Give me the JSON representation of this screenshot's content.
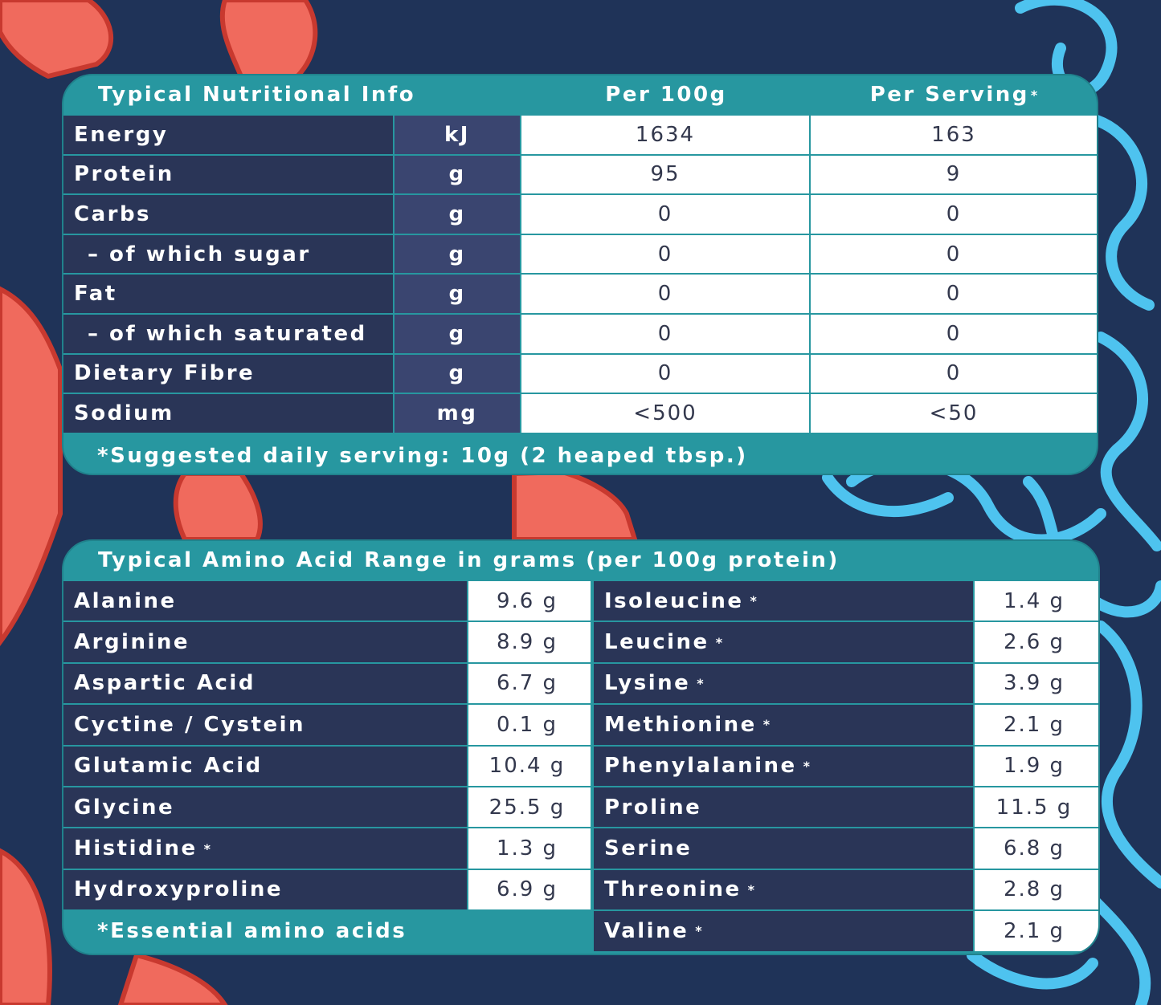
{
  "colors": {
    "background": "#1f3358",
    "panel": "#2797a0",
    "label_cell": "#2a3557",
    "unit_cell": "#3a4570",
    "value_cell": "#ffffff",
    "coral": "#f06a5d",
    "coral_line": "#c8392f",
    "rope": "#4ec3ef"
  },
  "nutrition": {
    "headers": {
      "title": "Typical Nutritional Info",
      "per100": "Per 100g",
      "perServing": "Per Serving*"
    },
    "rows": [
      {
        "label": "Energy",
        "unit": "kJ",
        "per100": "1634",
        "perServing": "163"
      },
      {
        "label": "Protein",
        "unit": "g",
        "per100": "95",
        "perServing": "9"
      },
      {
        "label": "Carbs",
        "unit": "g",
        "per100": "0",
        "perServing": "0"
      },
      {
        "label": "– of which sugar",
        "unit": "g",
        "per100": "0",
        "perServing": "0"
      },
      {
        "label": "Fat",
        "unit": "g",
        "per100": "0",
        "perServing": "0"
      },
      {
        "label": "– of which saturated",
        "unit": "g",
        "per100": "0",
        "perServing": "0"
      },
      {
        "label": "Dietary Fibre",
        "unit": "g",
        "per100": "0",
        "perServing": "0"
      },
      {
        "label": "Sodium",
        "unit": "mg",
        "per100": "<500",
        "perServing": "<50"
      }
    ],
    "footnote": "*Suggested daily serving: 10g (2 heaped tbsp.)"
  },
  "amino": {
    "title": "Typical Amino Acid Range in grams (per 100g protein)",
    "left": [
      {
        "name": "Alanine",
        "value": "9.6 g",
        "essential": false
      },
      {
        "name": "Arginine",
        "value": "8.9 g",
        "essential": false
      },
      {
        "name": "Aspartic Acid",
        "value": "6.7 g",
        "essential": false
      },
      {
        "name": "Cyctine / Cystein",
        "value": "0.1 g",
        "essential": false
      },
      {
        "name": "Glutamic Acid",
        "value": "10.4 g",
        "essential": false
      },
      {
        "name": "Glycine",
        "value": "25.5 g",
        "essential": false
      },
      {
        "name": "Histidine",
        "value": "1.3 g",
        "essential": true
      },
      {
        "name": "Hydroxyproline",
        "value": "6.9 g",
        "essential": false
      }
    ],
    "right": [
      {
        "name": "Isoleucine",
        "value": "1.4 g",
        "essential": true
      },
      {
        "name": "Leucine",
        "value": "2.6 g",
        "essential": true
      },
      {
        "name": "Lysine",
        "value": "3.9 g",
        "essential": true
      },
      {
        "name": "Methionine",
        "value": "2.1 g",
        "essential": true
      },
      {
        "name": "Phenylalanine",
        "value": "1.9 g",
        "essential": true
      },
      {
        "name": "Proline",
        "value": "11.5 g",
        "essential": false
      },
      {
        "name": "Serine",
        "value": "6.8 g",
        "essential": false
      },
      {
        "name": "Threonine",
        "value": "2.8 g",
        "essential": true
      },
      {
        "name": "Valine",
        "value": "2.1 g",
        "essential": true
      }
    ],
    "star_symbol": "*",
    "footnote": "*Essential amino acids"
  }
}
